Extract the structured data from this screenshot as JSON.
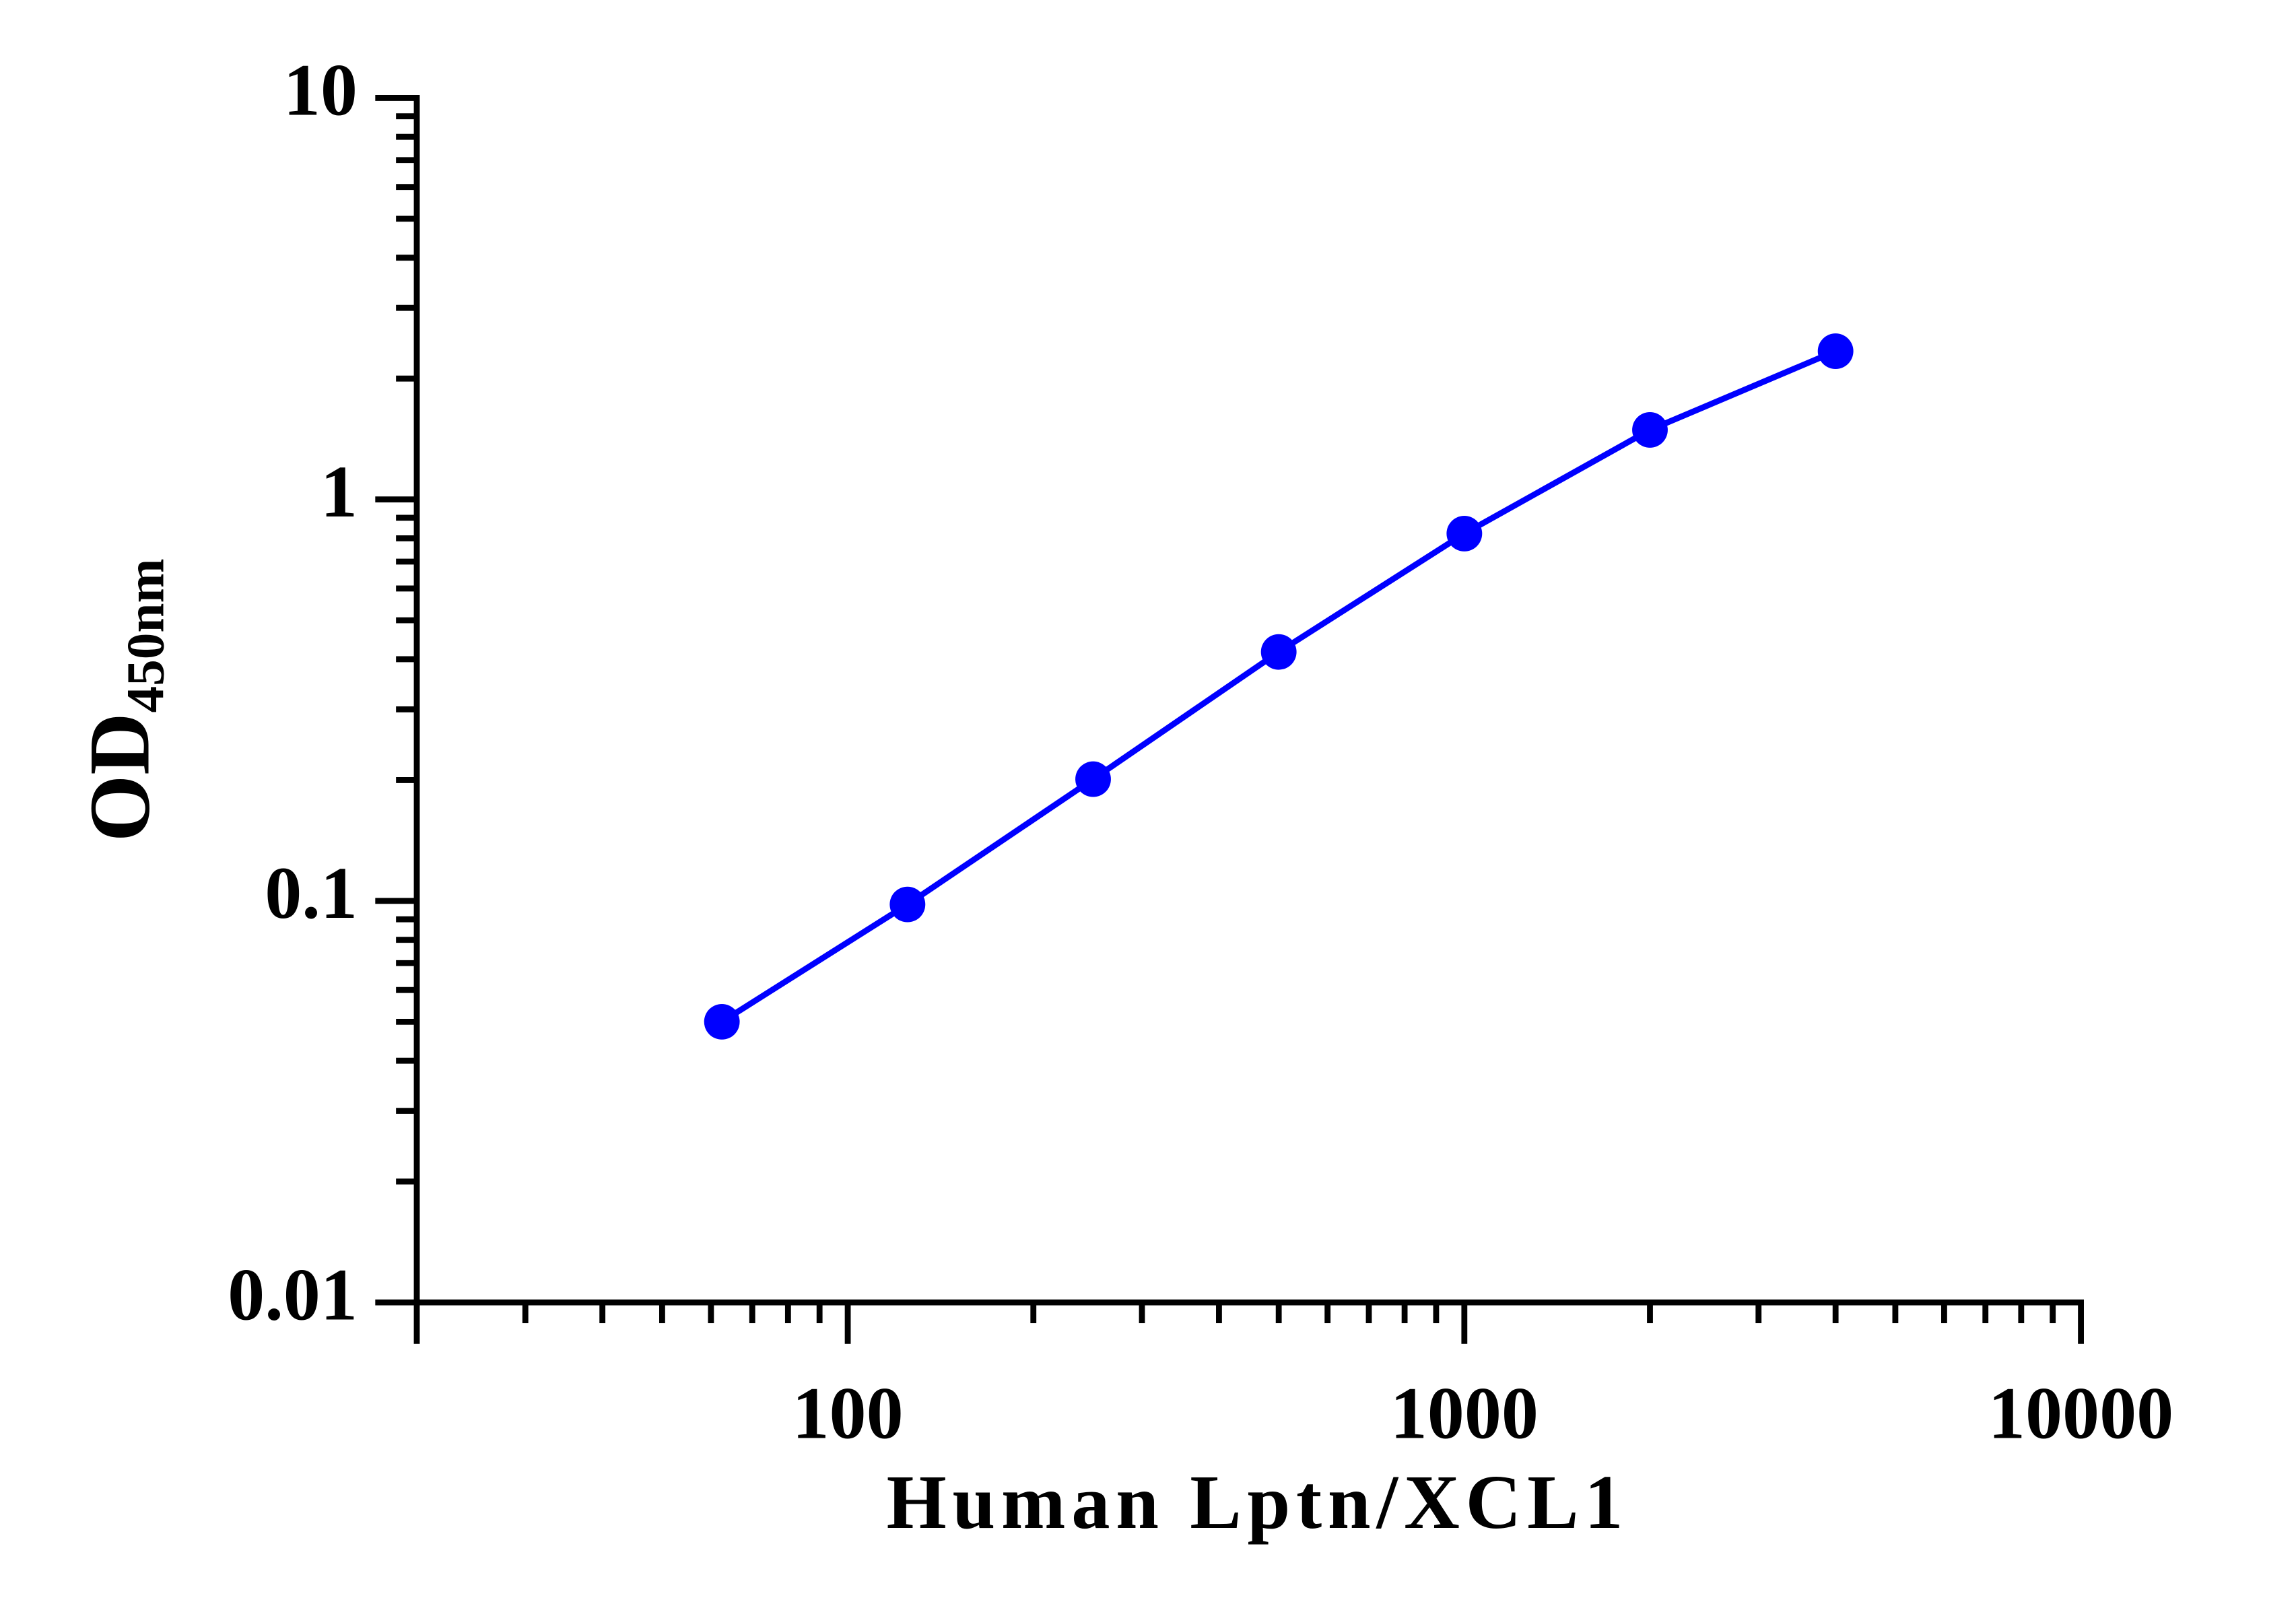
{
  "chart_data": {
    "type": "line",
    "xlabel": "Human Lptn/XCL1",
    "ylabel": "OD",
    "ylabel_subscript": "450nm",
    "x": [
      62.5,
      125,
      250,
      500,
      1000,
      2000,
      4000
    ],
    "series": [
      {
        "color": "#0000ff",
        "values": [
          0.05,
          0.098,
          0.201,
          0.417,
          0.822,
          1.49,
          2.34
        ]
      }
    ],
    "xscale": "log",
    "yscale": "log",
    "xlim": [
      20,
      10000
    ],
    "xticks": [
      100,
      1000,
      10000
    ],
    "ylim": [
      0.01,
      10
    ],
    "yticks": [
      0.01,
      0.1,
      1,
      10
    ],
    "grid": false
  }
}
